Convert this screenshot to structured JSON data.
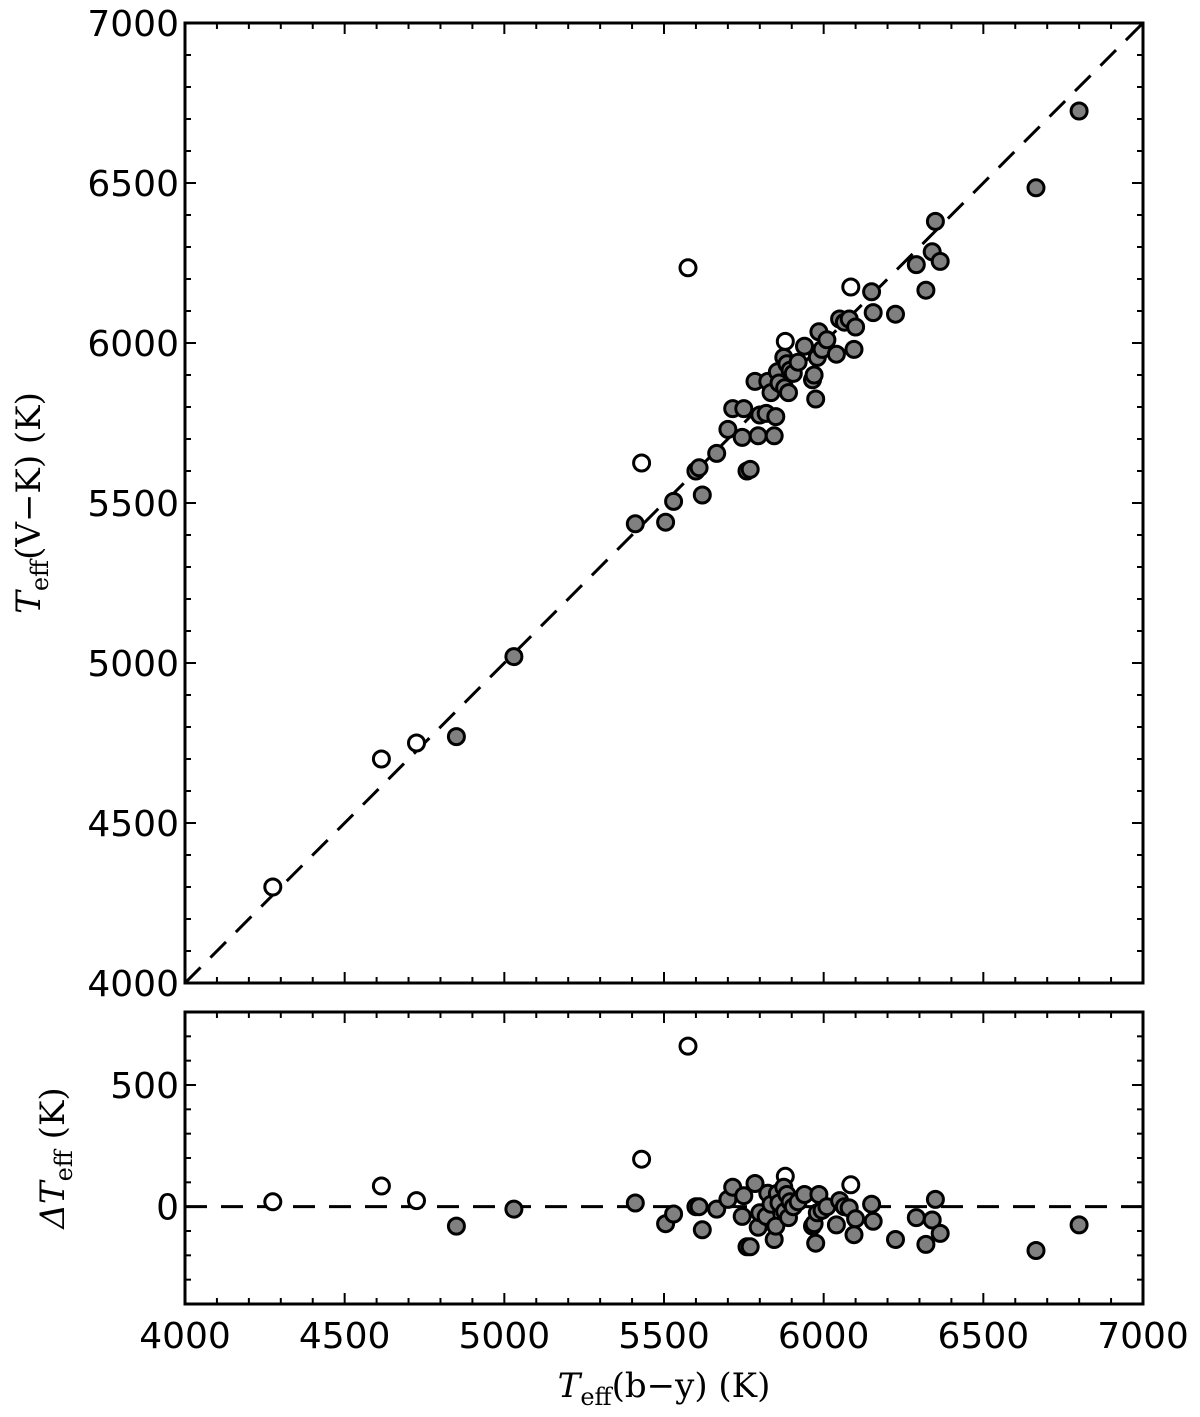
{
  "colors": {
    "filled_marker": "#808080",
    "open_marker": "#ffffff",
    "edge": "#000000"
  },
  "chart_data": [
    {
      "type": "scatter",
      "panel": "top",
      "xlabel": "T_eff(b−y) (K)",
      "ylabel": "T_eff(V−K) (K)",
      "xlim": [
        4000,
        7000
      ],
      "ylim": [
        4000,
        7000
      ],
      "xticks": [
        4000,
        4500,
        5000,
        5500,
        6000,
        6500,
        7000
      ],
      "yticks": [
        4000,
        4500,
        5000,
        5500,
        6000,
        6500,
        7000
      ],
      "reference_line": "y = x (dashed)",
      "series": [
        {
          "marker": "open circle",
          "points": [
            [
              4275,
              4300
            ],
            [
              4615,
              4700
            ],
            [
              4725,
              4750
            ],
            [
              5430,
              5625
            ],
            [
              5575,
              6235
            ],
            [
              5880,
              6005
            ],
            [
              6085,
              6175
            ]
          ]
        },
        {
          "marker": "filled grey circle",
          "points": [
            [
              4850,
              4770
            ],
            [
              5030,
              5020
            ],
            [
              5410,
              5435
            ],
            [
              5505,
              5440
            ],
            [
              5530,
              5505
            ],
            [
              5600,
              5600
            ],
            [
              5610,
              5610
            ],
            [
              5620,
              5525
            ],
            [
              5665,
              5655
            ],
            [
              5700,
              5730
            ],
            [
              5715,
              5795
            ],
            [
              5745,
              5705
            ],
            [
              5750,
              5795
            ],
            [
              5760,
              5600
            ],
            [
              5770,
              5605
            ],
            [
              5785,
              5880
            ],
            [
              5795,
              5710
            ],
            [
              5800,
              5775
            ],
            [
              5820,
              5780
            ],
            [
              5825,
              5880
            ],
            [
              5835,
              5845
            ],
            [
              5845,
              5710
            ],
            [
              5850,
              5770
            ],
            [
              5855,
              5910
            ],
            [
              5860,
              5875
            ],
            [
              5875,
              5955
            ],
            [
              5878,
              5860
            ],
            [
              5885,
              5935
            ],
            [
              5890,
              5845
            ],
            [
              5895,
              5915
            ],
            [
              5905,
              5905
            ],
            [
              5920,
              5940
            ],
            [
              5940,
              5990
            ],
            [
              5965,
              5885
            ],
            [
              5970,
              5900
            ],
            [
              5975,
              5825
            ],
            [
              5980,
              5955
            ],
            [
              5985,
              6035
            ],
            [
              5995,
              5980
            ],
            [
              6010,
              6010
            ],
            [
              6040,
              5965
            ],
            [
              6050,
              6075
            ],
            [
              6065,
              6065
            ],
            [
              6080,
              6075
            ],
            [
              6095,
              5980
            ],
            [
              6100,
              6050
            ],
            [
              6150,
              6160
            ],
            [
              6155,
              6095
            ],
            [
              6225,
              6090
            ],
            [
              6290,
              6245
            ],
            [
              6320,
              6165
            ],
            [
              6340,
              6285
            ],
            [
              6350,
              6380
            ],
            [
              6365,
              6255
            ],
            [
              6665,
              6485
            ],
            [
              6800,
              6725
            ]
          ]
        }
      ]
    },
    {
      "type": "scatter",
      "panel": "bottom",
      "xlabel": "T_eff(b−y) (K)",
      "ylabel": "ΔT_eff (K)",
      "xlim": [
        4000,
        7000
      ],
      "ylim": [
        -400,
        800
      ],
      "xticks": [
        4000,
        4500,
        5000,
        5500,
        6000,
        6500,
        7000
      ],
      "yticks": [
        0,
        500
      ],
      "reference_line": "y = 0 (dashed)",
      "series": [
        {
          "marker": "open circle",
          "points": [
            [
              4275,
              20
            ],
            [
              4615,
              85
            ],
            [
              4725,
              25
            ],
            [
              5430,
              195
            ],
            [
              5575,
              660
            ],
            [
              5880,
              125
            ],
            [
              6085,
              90
            ]
          ]
        },
        {
          "marker": "filled grey circle",
          "points": [
            [
              4850,
              -80
            ],
            [
              5030,
              -10
            ],
            [
              5410,
              15
            ],
            [
              5505,
              -70
            ],
            [
              5530,
              -30
            ],
            [
              5600,
              0
            ],
            [
              5610,
              0
            ],
            [
              5620,
              -95
            ],
            [
              5665,
              -10
            ],
            [
              5700,
              30
            ],
            [
              5715,
              80
            ],
            [
              5745,
              -40
            ],
            [
              5750,
              45
            ],
            [
              5760,
              -165
            ],
            [
              5770,
              -165
            ],
            [
              5785,
              95
            ],
            [
              5795,
              -85
            ],
            [
              5800,
              -25
            ],
            [
              5820,
              -40
            ],
            [
              5825,
              55
            ],
            [
              5835,
              10
            ],
            [
              5845,
              -135
            ],
            [
              5850,
              -80
            ],
            [
              5855,
              55
            ],
            [
              5860,
              15
            ],
            [
              5875,
              80
            ],
            [
              5878,
              -20
            ],
            [
              5885,
              50
            ],
            [
              5890,
              -45
            ],
            [
              5895,
              20
            ],
            [
              5905,
              0
            ],
            [
              5920,
              20
            ],
            [
              5940,
              50
            ],
            [
              5965,
              -80
            ],
            [
              5970,
              -70
            ],
            [
              5975,
              -150
            ],
            [
              5980,
              -25
            ],
            [
              5985,
              50
            ],
            [
              5995,
              -15
            ],
            [
              6010,
              0
            ],
            [
              6040,
              -75
            ],
            [
              6050,
              25
            ],
            [
              6065,
              0
            ],
            [
              6080,
              -5
            ],
            [
              6095,
              -115
            ],
            [
              6100,
              -50
            ],
            [
              6150,
              10
            ],
            [
              6155,
              -60
            ],
            [
              6225,
              -135
            ],
            [
              6290,
              -45
            ],
            [
              6320,
              -155
            ],
            [
              6340,
              -55
            ],
            [
              6350,
              30
            ],
            [
              6365,
              -110
            ],
            [
              6665,
              -180
            ],
            [
              6800,
              -75
            ]
          ]
        }
      ]
    }
  ],
  "labels": {
    "top_y": {
      "pre": "T",
      "sub": "eff",
      "post": "(V−K) (K)"
    },
    "bottom_y": {
      "pre": "ΔT",
      "sub": "eff",
      "post": " (K)"
    },
    "x": {
      "pre": "T",
      "sub": "eff",
      "post": "(b−y) (K)"
    }
  }
}
